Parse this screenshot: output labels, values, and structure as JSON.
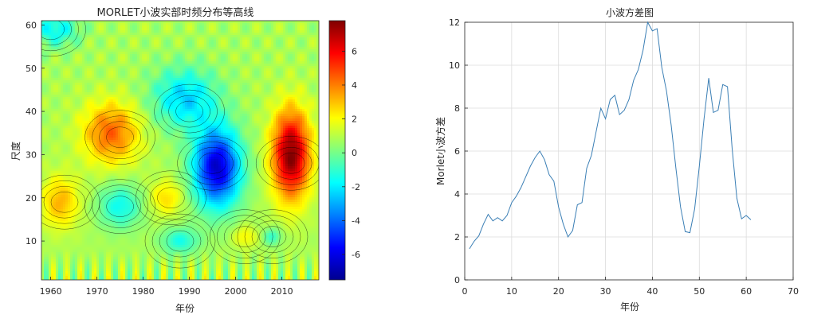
{
  "left_chart": {
    "title": "MORLET小波实部时频分布等高线",
    "xlabel": "年份",
    "ylabel": "尺度"
  },
  "right_chart": {
    "title": "小波方差图",
    "xlabel": "年份",
    "ylabel": "Morlet小波方差"
  },
  "chart_data": [
    {
      "type": "heatmap",
      "title": "MORLET小波实部时频分布等高线",
      "xlabel": "年份",
      "ylabel": "尺度",
      "x_ticks": [
        1960,
        1970,
        1980,
        1990,
        2000,
        2010
      ],
      "y_ticks": [
        10,
        20,
        30,
        40,
        50,
        60
      ],
      "xlim": [
        1958,
        2018
      ],
      "ylim": [
        1,
        61
      ],
      "colorbar": {
        "ticks": [
          -6,
          -4,
          -2,
          0,
          2,
          4,
          6
        ],
        "range": [
          -7.5,
          7.8
        ],
        "colormap": "jet"
      },
      "features": [
        {
          "x": 1963,
          "y": 19,
          "value": 2.6
        },
        {
          "x": 1975,
          "y": 18,
          "value": -3.2
        },
        {
          "x": 1975,
          "y": 34,
          "value": 4.2
        },
        {
          "x": 1986,
          "y": 20,
          "value": 3.2
        },
        {
          "x": 1995,
          "y": 28,
          "value": -7.0
        },
        {
          "x": 1990,
          "y": 40,
          "value": -3.0
        },
        {
          "x": 2012,
          "y": 28,
          "value": 7.6
        },
        {
          "x": 2002,
          "y": 11,
          "value": 1.8
        },
        {
          "x": 1988,
          "y": 10,
          "value": -2.0
        },
        {
          "x": 1960,
          "y": 59,
          "value": -2.5
        },
        {
          "x": 2008,
          "y": 11,
          "value": -2.2
        }
      ]
    },
    {
      "type": "line",
      "title": "小波方差图",
      "xlabel": "年份",
      "ylabel": "Morlet小波方差",
      "xlim": [
        0,
        70
      ],
      "ylim": [
        0,
        12
      ],
      "x_ticks": [
        0,
        10,
        20,
        30,
        40,
        50,
        60,
        70
      ],
      "y_ticks": [
        0,
        2,
        4,
        6,
        8,
        10,
        12
      ],
      "grid": true,
      "color": "#3b7fb5",
      "x": [
        1,
        2,
        3,
        4,
        5,
        6,
        7,
        8,
        9,
        10,
        11,
        12,
        13,
        14,
        15,
        16,
        17,
        18,
        19,
        20,
        21,
        22,
        23,
        24,
        25,
        26,
        27,
        28,
        29,
        30,
        31,
        32,
        33,
        34,
        35,
        36,
        37,
        38,
        39,
        40,
        41,
        42,
        43,
        44,
        45,
        46,
        47,
        48,
        49,
        50,
        51,
        52,
        53,
        54,
        55,
        56,
        57,
        58,
        59,
        60,
        61
      ],
      "y": [
        1.45,
        1.8,
        2.05,
        2.6,
        3.05,
        2.75,
        2.9,
        2.75,
        3.0,
        3.6,
        3.9,
        4.3,
        4.8,
        5.3,
        5.7,
        6.0,
        5.6,
        4.9,
        4.6,
        3.4,
        2.6,
        2.0,
        2.3,
        3.5,
        3.6,
        5.2,
        5.8,
        6.9,
        8.0,
        7.5,
        8.4,
        8.6,
        7.7,
        7.9,
        8.4,
        9.3,
        9.8,
        10.7,
        12.0,
        11.6,
        11.7,
        9.9,
        8.8,
        7.2,
        5.2,
        3.4,
        2.25,
        2.2,
        3.3,
        5.3,
        7.5,
        9.4,
        7.8,
        7.9,
        9.1,
        9.0,
        6.1,
        3.8,
        2.85,
        3.0,
        2.8
      ]
    }
  ]
}
